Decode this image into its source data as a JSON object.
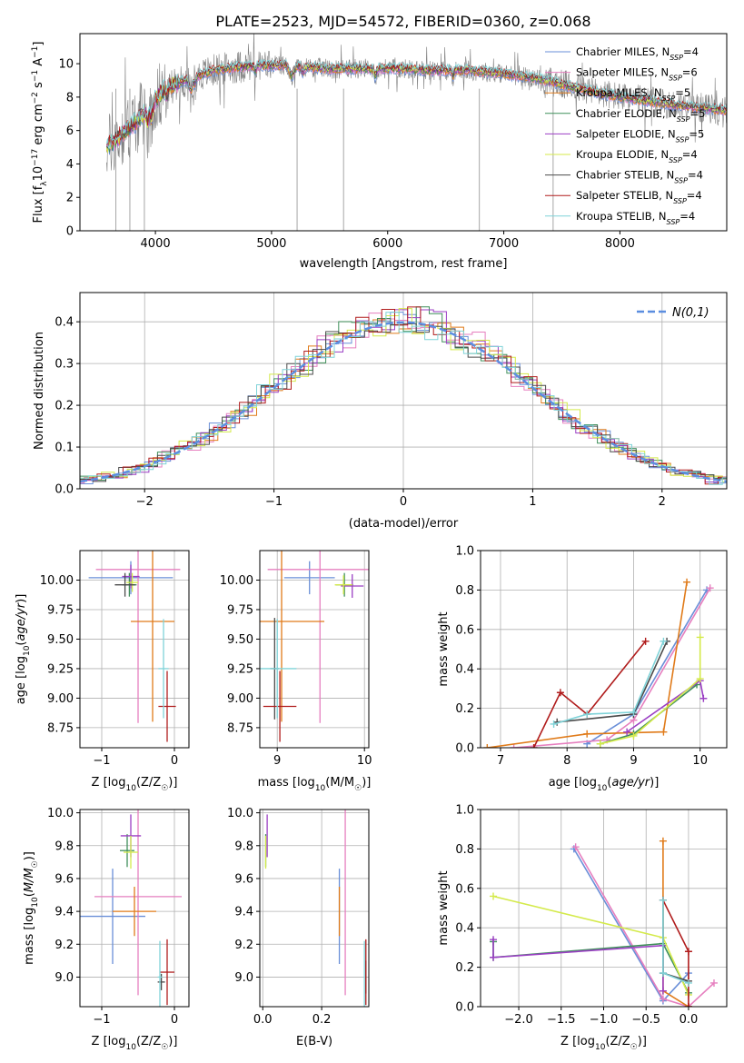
{
  "title": "PLATE=2523, MJD=54572, FIBERID=0360, z=0.068",
  "colors": {
    "Chabrier MILES": "#6a8fd8",
    "Salpeter MILES": "#e67fbf",
    "Kroupa MILES": "#e07b1a",
    "Chabrier ELODIE": "#3f8f5a",
    "Salpeter ELODIE": "#9b3fc4",
    "Kroupa ELODIE": "#d4ea4a",
    "Chabrier STELIB": "#4a4a4a",
    "Salpeter STELIB": "#b01c1c",
    "Kroupa STELIB": "#7fd3d8"
  },
  "legend": [
    {
      "name": "Chabrier MILES",
      "pre": "Chabrier MILES, N",
      "sub": "SSP",
      "post": "=4"
    },
    {
      "name": "Salpeter MILES",
      "pre": "Salpeter MILES, N",
      "sub": "SSP",
      "post": "=6"
    },
    {
      "name": "Kroupa MILES",
      "pre": "Kroupa MILES, N",
      "sub": "SSP",
      "post": "=5"
    },
    {
      "name": "Chabrier ELODIE",
      "pre": "Chabrier ELODIE, N",
      "sub": "SSP",
      "post": "=5"
    },
    {
      "name": "Salpeter ELODIE",
      "pre": "Salpeter ELODIE, N",
      "sub": "SSP",
      "post": "=5"
    },
    {
      "name": "Kroupa ELODIE",
      "pre": "Kroupa ELODIE, N",
      "sub": "SSP",
      "post": "=4"
    },
    {
      "name": "Chabrier STELIB",
      "pre": "Chabrier STELIB, N",
      "sub": "SSP",
      "post": "=4"
    },
    {
      "name": "Salpeter STELIB",
      "pre": "Salpeter STELIB, N",
      "sub": "SSP",
      "post": "=4"
    },
    {
      "name": "Kroupa STELIB",
      "pre": "Kroupa STELIB, N",
      "sub": "SSP",
      "post": "=4"
    }
  ],
  "chart_data": [
    {
      "id": "spectrum",
      "type": "line",
      "ylabel_pre": "Flux [f",
      "ylabel_sub": "λ",
      "ylabel_mid": "10",
      "ylabel_sup1": "−17",
      "ylabel_units": " erg cm",
      "ylabel_sup2": "−2",
      "ylabel_s": " s",
      "ylabel_sup3": "−1",
      "ylabel_A": " A",
      "ylabel_sup4": "−1",
      "ylabel_end": "]",
      "xlabel": "wavelength [Angstrom, rest frame]",
      "xlim": [
        3350,
        8920
      ],
      "ylim": [
        0,
        11.8
      ],
      "xticks": [
        4000,
        5000,
        6000,
        7000,
        8000
      ],
      "yticks": [
        0,
        2,
        4,
        6,
        8,
        10
      ],
      "continuum": [
        [
          3580,
          5.0
        ],
        [
          3650,
          5.4
        ],
        [
          3750,
          6.0
        ],
        [
          3850,
          6.6
        ],
        [
          3950,
          7.5
        ],
        [
          4100,
          8.6
        ],
        [
          4300,
          9.1
        ],
        [
          4500,
          9.6
        ],
        [
          4700,
          9.8
        ],
        [
          4900,
          9.9
        ],
        [
          5100,
          9.9
        ],
        [
          5300,
          9.8
        ],
        [
          5500,
          9.7
        ],
        [
          5800,
          9.7
        ],
        [
          6100,
          9.7
        ],
        [
          6400,
          9.6
        ],
        [
          6700,
          9.6
        ],
        [
          7000,
          9.4
        ],
        [
          7300,
          9.1
        ],
        [
          7600,
          8.6
        ],
        [
          8000,
          8.0
        ],
        [
          8500,
          7.5
        ],
        [
          8920,
          7.2
        ]
      ],
      "masked_pixels": [
        3660,
        3780,
        3905,
        5220,
        5620,
        6790,
        7425
      ]
    },
    {
      "id": "residuals",
      "type": "histogram",
      "xlabel": "(data-model)/error",
      "ylabel": "Normed distribution",
      "xlim": [
        -2.5,
        2.5
      ],
      "ylim": [
        0,
        0.47
      ],
      "xticks": [
        -2,
        -1,
        0,
        1,
        2
      ],
      "yticks": [
        0.0,
        0.1,
        0.2,
        0.3,
        0.4
      ],
      "bin_width": 0.1,
      "reference": {
        "label": "N(0,1)",
        "mean": 0,
        "sigma": 1
      }
    },
    {
      "id": "age_vs_Z",
      "type": "scatter",
      "xlabel_pre": "Z [log",
      "xlabel_sub": "10",
      "xlabel_post": "(Z/Z",
      "xlabel_sub2": "☉",
      "xlabel_end": ")]",
      "ylabel": "age  [log10(age/yr)]",
      "xlim": [
        -1.3,
        0.2
      ],
      "ylim": [
        8.58,
        10.25
      ],
      "xticks": [
        -1,
        0
      ],
      "yticks": [
        8.75,
        9.0,
        9.25,
        9.5,
        9.75,
        10.0
      ],
      "points": [
        {
          "s": "Chabrier MILES",
          "x": -0.6,
          "xerr": 0.58,
          "y": 10.02,
          "yerr": 0.14
        },
        {
          "s": "Salpeter MILES",
          "x": -0.5,
          "xerr": 0.58,
          "y": 10.09,
          "yerr": 1.3
        },
        {
          "s": "Kroupa MILES",
          "x": -0.3,
          "xerr": 0.3,
          "y": 9.65,
          "yerr": 0.85
        },
        {
          "s": "Chabrier ELODIE",
          "x": -0.62,
          "xerr": 0.1,
          "y": 9.96,
          "yerr": 0.1
        },
        {
          "s": "Salpeter ELODIE",
          "x": -0.6,
          "xerr": 0.12,
          "y": 10.03,
          "yerr": 0.1
        },
        {
          "s": "Kroupa ELODIE",
          "x": -0.58,
          "xerr": 0.08,
          "y": 9.98,
          "yerr": 0.08
        },
        {
          "s": "Chabrier STELIB",
          "x": -0.68,
          "xerr": 0.14,
          "y": 9.96,
          "yerr": 0.1
        },
        {
          "s": "Salpeter STELIB",
          "x": -0.1,
          "xerr": 0.12,
          "y": 8.93,
          "yerr": 0.3
        },
        {
          "s": "Kroupa STELIB",
          "x": -0.15,
          "xerr": 0.07,
          "y": 9.25,
          "yerr": 0.42
        }
      ]
    },
    {
      "id": "age_vs_mass",
      "type": "scatter",
      "xlabel_pre": "mass [log",
      "xlabel_sub": "10",
      "xlabel_post": "(M/M",
      "xlabel_sub2": "☉",
      "xlabel_end": ")]",
      "xlim": [
        8.8,
        10.05
      ],
      "ylim": [
        8.58,
        10.25
      ],
      "xticks": [
        9,
        10
      ],
      "yticks": [
        8.75,
        9.0,
        9.25,
        9.5,
        9.75,
        10.0
      ],
      "points": [
        {
          "s": "Chabrier MILES",
          "x": 9.37,
          "xerr": 0.29,
          "y": 10.02,
          "yerr": 0.14
        },
        {
          "s": "Salpeter MILES",
          "x": 9.49,
          "xerr": 0.6,
          "y": 10.09,
          "yerr": 1.3
        },
        {
          "s": "Kroupa MILES",
          "x": 9.05,
          "xerr": 0.49,
          "y": 9.65,
          "yerr": 0.85
        },
        {
          "s": "Chabrier ELODIE",
          "x": 9.77,
          "xerr": 0.1,
          "y": 9.96,
          "yerr": 0.1
        },
        {
          "s": "Salpeter ELODIE",
          "x": 9.86,
          "xerr": 0.13,
          "y": 9.95,
          "yerr": 0.1
        },
        {
          "s": "Kroupa ELODIE",
          "x": 9.76,
          "xerr": 0.1,
          "y": 9.96,
          "yerr": 0.08
        },
        {
          "s": "Chabrier STELIB",
          "x": 8.97,
          "xerr": 0.05,
          "y": 9.25,
          "yerr": 0.43
        },
        {
          "s": "Salpeter STELIB",
          "x": 9.03,
          "xerr": 0.19,
          "y": 8.93,
          "yerr": 0.3
        },
        {
          "s": "Kroupa STELIB",
          "x": 9.0,
          "xerr": 0.22,
          "y": 9.25,
          "yerr": 0.42
        }
      ]
    },
    {
      "id": "weight_vs_age",
      "type": "line",
      "xlabel": "age  [log10(age/yr)]",
      "ylabel": "mass weight",
      "xlim": [
        6.7,
        10.4
      ],
      "ylim": [
        0,
        1.0
      ],
      "xticks": [
        7,
        8,
        9,
        10
      ],
      "yticks": [
        0.0,
        0.2,
        0.4,
        0.6,
        0.8,
        1.0
      ],
      "series": [
        {
          "s": "Chabrier MILES",
          "points": [
            [
              8.3,
              0.02
            ],
            [
              9.0,
              0.17
            ],
            [
              10.1,
              0.8
            ]
          ]
        },
        {
          "s": "Salpeter MILES",
          "points": [
            [
              7.2,
              0.0
            ],
            [
              8.6,
              0.04
            ],
            [
              9.0,
              0.14
            ],
            [
              10.15,
              0.81
            ]
          ]
        },
        {
          "s": "Kroupa MILES",
          "points": [
            [
              6.8,
              0.0
            ],
            [
              8.3,
              0.07
            ],
            [
              9.45,
              0.08
            ],
            [
              9.8,
              0.84
            ]
          ]
        },
        {
          "s": "Chabrier ELODIE",
          "points": [
            [
              8.5,
              0.02
            ],
            [
              9.0,
              0.07
            ],
            [
              9.95,
              0.32
            ]
          ]
        },
        {
          "s": "Salpeter ELODIE",
          "points": [
            [
              8.9,
              0.08
            ],
            [
              10.0,
              0.34
            ],
            [
              10.05,
              0.25
            ]
          ]
        },
        {
          "s": "Kroupa ELODIE",
          "points": [
            [
              8.5,
              0.02
            ],
            [
              9.0,
              0.06
            ],
            [
              10.0,
              0.35
            ],
            [
              10.0,
              0.56
            ]
          ]
        },
        {
          "s": "Chabrier STELIB",
          "points": [
            [
              7.85,
              0.13
            ],
            [
              9.0,
              0.17
            ],
            [
              9.5,
              0.54
            ]
          ]
        },
        {
          "s": "Salpeter STELIB",
          "points": [
            [
              7.5,
              0.0
            ],
            [
              7.9,
              0.28
            ],
            [
              8.3,
              0.17
            ],
            [
              9.18,
              0.54
            ]
          ]
        },
        {
          "s": "Kroupa STELIB",
          "points": [
            [
              7.8,
              0.12
            ],
            [
              8.3,
              0.17
            ],
            [
              9.0,
              0.18
            ],
            [
              9.45,
              0.54
            ]
          ]
        }
      ]
    },
    {
      "id": "mass_vs_Z",
      "type": "scatter",
      "xlabel_pre": "Z [log",
      "xlabel_sub": "10",
      "xlabel_post": "(Z/Z",
      "xlabel_sub2": "☉",
      "xlabel_end": ")]",
      "ylabel": "mass [log10(M/M☉)]",
      "xlim": [
        -1.3,
        0.2
      ],
      "ylim": [
        8.82,
        10.02
      ],
      "xticks": [
        -1,
        0
      ],
      "yticks": [
        9.0,
        9.2,
        9.4,
        9.6,
        9.8,
        10.0
      ],
      "points": [
        {
          "s": "Chabrier MILES",
          "x": -0.85,
          "xerr": 0.45,
          "y": 9.37,
          "yerr": 0.29
        },
        {
          "s": "Salpeter MILES",
          "x": -0.5,
          "xerr": 0.6,
          "y": 9.49,
          "yerr": 0.6
        },
        {
          "s": "Kroupa MILES",
          "x": -0.55,
          "xerr": 0.3,
          "y": 9.4,
          "yerr": 0.15
        },
        {
          "s": "Chabrier ELODIE",
          "x": -0.65,
          "xerr": 0.1,
          "y": 9.77,
          "yerr": 0.1
        },
        {
          "s": "Salpeter ELODIE",
          "x": -0.6,
          "xerr": 0.14,
          "y": 9.86,
          "yerr": 0.13
        },
        {
          "s": "Kroupa ELODIE",
          "x": -0.6,
          "xerr": 0.1,
          "y": 9.76,
          "yerr": 0.1
        },
        {
          "s": "Chabrier STELIB",
          "x": -0.18,
          "xerr": 0.05,
          "y": 8.97,
          "yerr": 0.05
        },
        {
          "s": "Salpeter STELIB",
          "x": -0.1,
          "xerr": 0.1,
          "y": 9.03,
          "yerr": 0.2
        },
        {
          "s": "Kroupa STELIB",
          "x": -0.2,
          "xerr": 0.03,
          "y": 9.0,
          "yerr": 0.22
        }
      ]
    },
    {
      "id": "mass_vs_ebv",
      "type": "scatter",
      "xlabel": "E(B-V)",
      "xlim": [
        -0.01,
        0.36
      ],
      "ylim": [
        8.82,
        10.02
      ],
      "xticks": [
        0.0,
        0.2
      ],
      "yticks": [
        9.0,
        9.2,
        9.4,
        9.6,
        9.8,
        10.0
      ],
      "points": [
        {
          "s": "Chabrier MILES",
          "x": 0.26,
          "y": 9.37,
          "yerr": 0.29
        },
        {
          "s": "Salpeter MILES",
          "x": 0.28,
          "y": 9.49,
          "yerr": 0.6
        },
        {
          "s": "Kroupa MILES",
          "x": 0.26,
          "y": 9.4,
          "yerr": 0.15
        },
        {
          "s": "Chabrier ELODIE",
          "x": 0.01,
          "y": 9.77,
          "yerr": 0.1
        },
        {
          "s": "Salpeter ELODIE",
          "x": 0.015,
          "y": 9.86,
          "yerr": 0.13
        },
        {
          "s": "Kroupa ELODIE",
          "x": 0.01,
          "y": 9.76,
          "yerr": 0.1
        },
        {
          "s": "Chabrier STELIB",
          "x": 0.35,
          "y": 9.0,
          "yerr": 0.1
        },
        {
          "s": "Salpeter STELIB",
          "x": 0.35,
          "y": 9.03,
          "yerr": 0.2
        },
        {
          "s": "Kroupa STELIB",
          "x": 0.345,
          "y": 9.0,
          "yerr": 0.22
        }
      ]
    },
    {
      "id": "weight_vs_Z",
      "type": "line",
      "xlabel_pre": "Z [log",
      "xlabel_sub": "10",
      "xlabel_post": "(Z/Z",
      "xlabel_sub2": "☉",
      "xlabel_end": ")]",
      "ylabel": "mass weight",
      "xlim": [
        -2.45,
        0.45
      ],
      "ylim": [
        0,
        1.0
      ],
      "xticks": [
        -2.0,
        -1.5,
        -1.0,
        -0.5,
        0.0
      ],
      "yticks": [
        0.0,
        0.2,
        0.4,
        0.6,
        0.8,
        1.0
      ],
      "series": [
        {
          "s": "Chabrier MILES",
          "points": [
            [
              -1.35,
              0.8
            ],
            [
              -0.3,
              0.03
            ],
            [
              0.0,
              0.17
            ]
          ]
        },
        {
          "s": "Salpeter MILES",
          "points": [
            [
              -1.33,
              0.81
            ],
            [
              -0.3,
              0.04
            ],
            [
              0.0,
              0.0
            ],
            [
              0.3,
              0.12
            ]
          ]
        },
        {
          "s": "Kroupa MILES",
          "points": [
            [
              -0.3,
              0.84
            ],
            [
              -0.3,
              0.08
            ],
            [
              0.0,
              0.0
            ]
          ]
        },
        {
          "s": "Chabrier ELODIE",
          "points": [
            [
              -2.3,
              0.33
            ],
            [
              -2.3,
              0.25
            ],
            [
              -0.3,
              0.32
            ],
            [
              0.0,
              0.07
            ]
          ]
        },
        {
          "s": "Salpeter ELODIE",
          "points": [
            [
              -2.3,
              0.34
            ],
            [
              -2.3,
              0.25
            ],
            [
              -0.3,
              0.31
            ],
            [
              -0.3,
              0.08
            ]
          ]
        },
        {
          "s": "Kroupa ELODIE",
          "points": [
            [
              -2.3,
              0.56
            ],
            [
              -0.3,
              0.35
            ],
            [
              0.0,
              0.06
            ]
          ]
        },
        {
          "s": "Chabrier STELIB",
          "points": [
            [
              -0.3,
              0.54
            ],
            [
              -0.3,
              0.17
            ],
            [
              0.0,
              0.13
            ]
          ]
        },
        {
          "s": "Salpeter STELIB",
          "points": [
            [
              -0.3,
              0.54
            ],
            [
              0.0,
              0.28
            ],
            [
              0.0,
              0.0
            ]
          ]
        },
        {
          "s": "Kroupa STELIB",
          "points": [
            [
              -0.3,
              0.54
            ],
            [
              -0.3,
              0.17
            ],
            [
              0.0,
              0.12
            ]
          ]
        }
      ]
    }
  ]
}
